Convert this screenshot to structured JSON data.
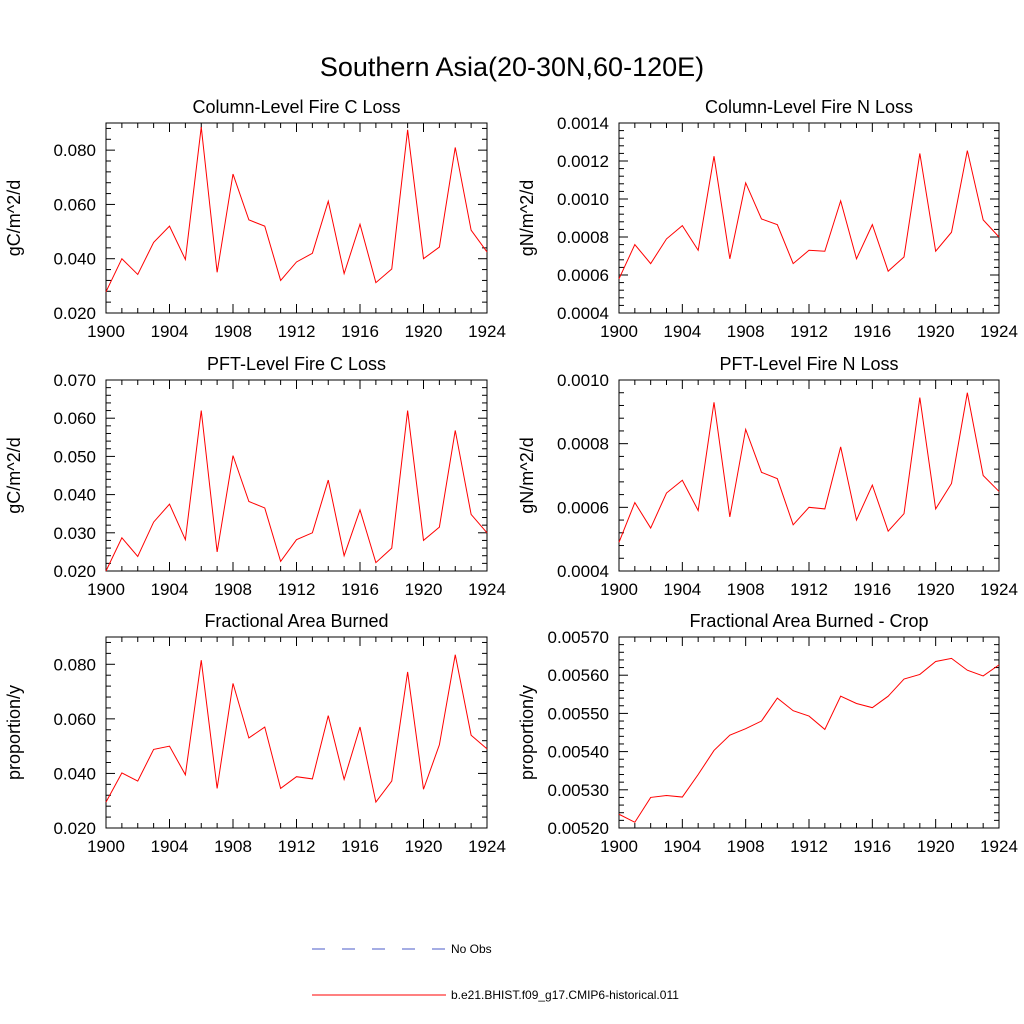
{
  "figure": {
    "title": "Southern Asia(20-30N,60-120E)"
  },
  "legend": [
    {
      "label": "No Obs",
      "color": "#4b5bc8",
      "style": "dashed"
    },
    {
      "label": "b.e21.BHIST.f09_g17.CMIP6-historical.011",
      "color": "#ff0000",
      "style": "solid"
    }
  ],
  "chart_data": [
    {
      "type": "line",
      "title": "Column-Level Fire C Loss",
      "ylabel": "gC/m^2/d",
      "xlim": [
        1900,
        1924
      ],
      "ylim": [
        0.02,
        0.09
      ],
      "xticks": [
        1900,
        1904,
        1908,
        1912,
        1916,
        1920,
        1924
      ],
      "xtick_labels": [
        "1900",
        "1904",
        "1908",
        "1912",
        "1916",
        "1920",
        "1924"
      ],
      "yticks": [
        0.02,
        0.04,
        0.06,
        0.08
      ],
      "ytick_labels": [
        "0.020",
        "0.040",
        "0.060",
        "0.080"
      ],
      "x": [
        1900,
        1901,
        1902,
        1903,
        1904,
        1905,
        1906,
        1907,
        1908,
        1909,
        1910,
        1911,
        1912,
        1913,
        1914,
        1915,
        1916,
        1917,
        1918,
        1919,
        1920,
        1921,
        1922,
        1923,
        1924
      ],
      "series": [
        {
          "name": "b.e21.BHIST.f09_g17.CMIP6-historical.011",
          "color": "#ff0000",
          "values": [
            0.0278,
            0.04,
            0.0342,
            0.046,
            0.052,
            0.0397,
            0.0885,
            0.035,
            0.0712,
            0.0543,
            0.052,
            0.032,
            0.0388,
            0.042,
            0.0612,
            0.0345,
            0.0527,
            0.0312,
            0.0362,
            0.0875,
            0.04,
            0.0443,
            0.081,
            0.0505,
            0.0425
          ]
        }
      ]
    },
    {
      "type": "line",
      "title": "Column-Level Fire N Loss",
      "ylabel": "gN/m^2/d",
      "xlim": [
        1900,
        1924
      ],
      "ylim": [
        0.0004,
        0.0014
      ],
      "xticks": [
        1900,
        1904,
        1908,
        1912,
        1916,
        1920,
        1924
      ],
      "xtick_labels": [
        "1900",
        "1904",
        "1908",
        "1912",
        "1916",
        "1920",
        "1924"
      ],
      "yticks": [
        0.0004,
        0.0006,
        0.0008,
        0.001,
        0.0012,
        0.0014
      ],
      "ytick_labels": [
        "0.0004",
        "0.0006",
        "0.0008",
        "0.0010",
        "0.0012",
        "0.0014"
      ],
      "x": [
        1900,
        1901,
        1902,
        1903,
        1904,
        1905,
        1906,
        1907,
        1908,
        1909,
        1910,
        1911,
        1912,
        1913,
        1914,
        1915,
        1916,
        1917,
        1918,
        1919,
        1920,
        1921,
        1922,
        1923,
        1924
      ],
      "series": [
        {
          "name": "b.e21.BHIST.f09_g17.CMIP6-historical.011",
          "color": "#ff0000",
          "values": [
            0.00058,
            0.00076,
            0.00066,
            0.00079,
            0.00086,
            0.00073,
            0.001225,
            0.000685,
            0.001085,
            0.000895,
            0.000865,
            0.00066,
            0.00073,
            0.000725,
            0.00099,
            0.000685,
            0.000865,
            0.00062,
            0.000695,
            0.00124,
            0.000725,
            0.000825,
            0.001255,
            0.00089,
            0.0008
          ]
        }
      ]
    },
    {
      "type": "line",
      "title": "PFT-Level Fire C Loss",
      "ylabel": "gC/m^2/d",
      "xlim": [
        1900,
        1924
      ],
      "ylim": [
        0.02,
        0.07
      ],
      "xticks": [
        1900,
        1904,
        1908,
        1912,
        1916,
        1920,
        1924
      ],
      "xtick_labels": [
        "1900",
        "1904",
        "1908",
        "1912",
        "1916",
        "1920",
        "1924"
      ],
      "yticks": [
        0.02,
        0.03,
        0.04,
        0.05,
        0.06,
        0.07
      ],
      "ytick_labels": [
        "0.020",
        "0.030",
        "0.040",
        "0.050",
        "0.060",
        "0.070"
      ],
      "x": [
        1900,
        1901,
        1902,
        1903,
        1904,
        1905,
        1906,
        1907,
        1908,
        1909,
        1910,
        1911,
        1912,
        1913,
        1914,
        1915,
        1916,
        1917,
        1918,
        1919,
        1920,
        1921,
        1922,
        1923,
        1924
      ],
      "series": [
        {
          "name": "b.e21.BHIST.f09_g17.CMIP6-historical.011",
          "color": "#ff0000",
          "values": [
            0.02,
            0.0287,
            0.0238,
            0.0328,
            0.0375,
            0.0282,
            0.062,
            0.025,
            0.0502,
            0.0382,
            0.0365,
            0.0225,
            0.0282,
            0.03,
            0.0438,
            0.024,
            0.036,
            0.0222,
            0.026,
            0.062,
            0.028,
            0.0315,
            0.0568,
            0.0348,
            0.03
          ]
        }
      ]
    },
    {
      "type": "line",
      "title": "PFT-Level Fire N Loss",
      "ylabel": "gN/m^2/d",
      "xlim": [
        1900,
        1924
      ],
      "ylim": [
        0.0004,
        0.001
      ],
      "xticks": [
        1900,
        1904,
        1908,
        1912,
        1916,
        1920,
        1924
      ],
      "xtick_labels": [
        "1900",
        "1904",
        "1908",
        "1912",
        "1916",
        "1920",
        "1924"
      ],
      "yticks": [
        0.0004,
        0.0006,
        0.0008,
        0.001
      ],
      "ytick_labels": [
        "0.0004",
        "0.0006",
        "0.0008",
        "0.0010"
      ],
      "x": [
        1900,
        1901,
        1902,
        1903,
        1904,
        1905,
        1906,
        1907,
        1908,
        1909,
        1910,
        1911,
        1912,
        1913,
        1914,
        1915,
        1916,
        1917,
        1918,
        1919,
        1920,
        1921,
        1922,
        1923,
        1924
      ],
      "series": [
        {
          "name": "b.e21.BHIST.f09_g17.CMIP6-historical.011",
          "color": "#ff0000",
          "values": [
            0.00049,
            0.000615,
            0.000535,
            0.000645,
            0.000685,
            0.00059,
            0.00093,
            0.00057,
            0.000845,
            0.00071,
            0.00069,
            0.000545,
            0.0006,
            0.000595,
            0.00079,
            0.00056,
            0.00067,
            0.000525,
            0.00058,
            0.000945,
            0.000595,
            0.000675,
            0.00096,
            0.0007,
            0.00065
          ]
        }
      ]
    },
    {
      "type": "line",
      "title": "Fractional Area Burned",
      "ylabel": "proportion/y",
      "xlim": [
        1900,
        1924
      ],
      "ylim": [
        0.02,
        0.09
      ],
      "xticks": [
        1900,
        1904,
        1908,
        1912,
        1916,
        1920,
        1924
      ],
      "xtick_labels": [
        "1900",
        "1904",
        "1908",
        "1912",
        "1916",
        "1920",
        "1924"
      ],
      "yticks": [
        0.02,
        0.04,
        0.06,
        0.08
      ],
      "ytick_labels": [
        "0.020",
        "0.040",
        "0.060",
        "0.080"
      ],
      "x": [
        1900,
        1901,
        1902,
        1903,
        1904,
        1905,
        1906,
        1907,
        1908,
        1909,
        1910,
        1911,
        1912,
        1913,
        1914,
        1915,
        1916,
        1917,
        1918,
        1919,
        1920,
        1921,
        1922,
        1923,
        1924
      ],
      "series": [
        {
          "name": "b.e21.BHIST.f09_g17.CMIP6-historical.011",
          "color": "#ff0000",
          "values": [
            0.0295,
            0.0402,
            0.0372,
            0.0488,
            0.05,
            0.0395,
            0.0815,
            0.0345,
            0.073,
            0.053,
            0.057,
            0.0345,
            0.0388,
            0.038,
            0.0612,
            0.0378,
            0.057,
            0.0295,
            0.0372,
            0.0772,
            0.0342,
            0.0505,
            0.0835,
            0.054,
            0.049
          ]
        }
      ]
    },
    {
      "type": "line",
      "title": "Fractional Area Burned - Crop",
      "ylabel": "proportion/y",
      "xlim": [
        1900,
        1924
      ],
      "ylim": [
        0.0052,
        0.0057
      ],
      "xticks": [
        1900,
        1904,
        1908,
        1912,
        1916,
        1920,
        1924
      ],
      "xtick_labels": [
        "1900",
        "1904",
        "1908",
        "1912",
        "1916",
        "1920",
        "1924"
      ],
      "yticks": [
        0.0052,
        0.0053,
        0.0054,
        0.0055,
        0.0056,
        0.0057
      ],
      "ytick_labels": [
        "0.00520",
        "0.00530",
        "0.00540",
        "0.00550",
        "0.00560",
        "0.00570"
      ],
      "x": [
        1900,
        1901,
        1902,
        1903,
        1904,
        1905,
        1906,
        1907,
        1908,
        1909,
        1910,
        1911,
        1912,
        1913,
        1914,
        1915,
        1916,
        1917,
        1918,
        1919,
        1920,
        1921,
        1922,
        1923,
        1924
      ],
      "series": [
        {
          "name": "b.e21.BHIST.f09_g17.CMIP6-historical.011",
          "color": "#ff0000",
          "values": [
            0.005236,
            0.005215,
            0.00528,
            0.005285,
            0.005281,
            0.00534,
            0.005403,
            0.005443,
            0.00546,
            0.00548,
            0.00554,
            0.005507,
            0.005493,
            0.005458,
            0.005545,
            0.005526,
            0.005515,
            0.005545,
            0.00559,
            0.005602,
            0.005636,
            0.005644,
            0.005613,
            0.005598,
            0.005627
          ]
        }
      ]
    }
  ]
}
